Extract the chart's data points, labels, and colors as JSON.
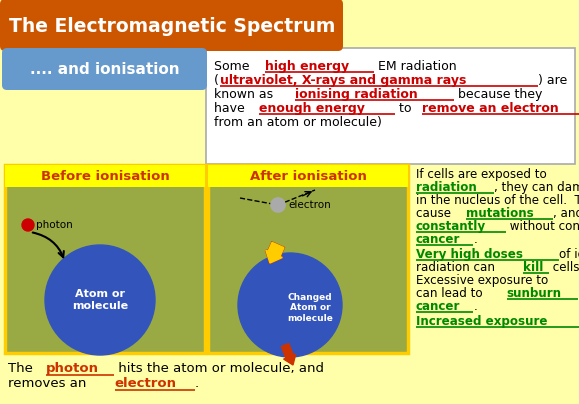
{
  "bg_color": "#ffffaa",
  "title_text": "The Electromagnetic Spectrum",
  "title_bg": "#cc5500",
  "title_fg": "#ffffff",
  "subtitle_bg": "#6699cc",
  "subtitle_text": ".... and ionisation",
  "subtitle_fg": "#ffffff",
  "left_panel_bg": "#99aa44",
  "before_label": "Before ionisation",
  "after_label": "After ionisation",
  "label_bg": "#ffff00",
  "label_fg": "#cc3300",
  "atom_color": "#3355bb",
  "photon_color": "#cc0000",
  "fam": "DejaVu Sans"
}
